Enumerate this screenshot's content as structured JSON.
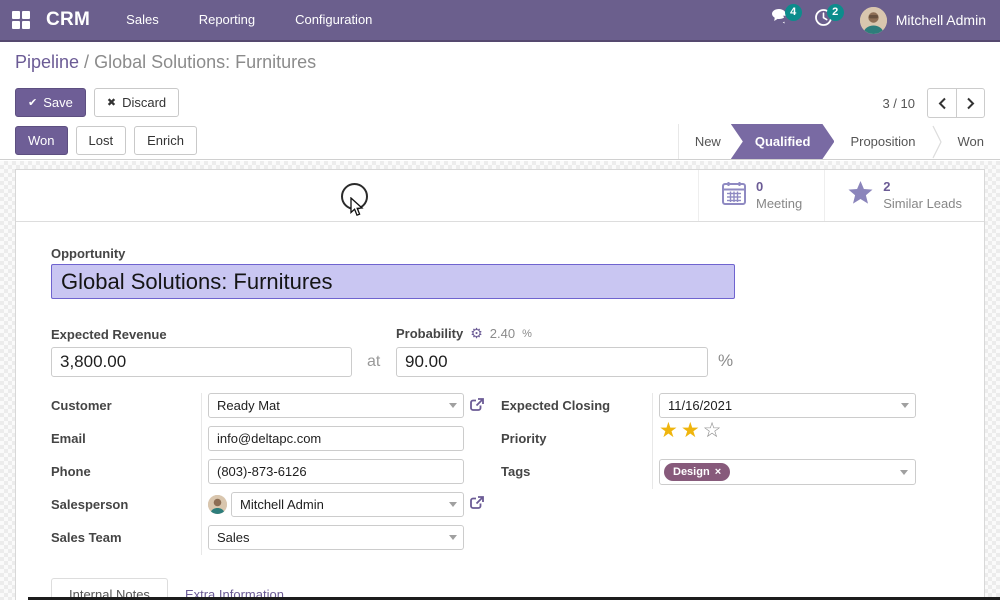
{
  "colors": {
    "nav_bg": "#6b5f8d",
    "accent_purple": "#6e5e96",
    "link_purple": "#6b5b95",
    "badge_teal": "#0d8c8c",
    "tag_bg": "#875a7b",
    "star_gold": "#efb50e",
    "stage_active_bg": "#796aa3",
    "title_selection_bg": "#c9c6f2",
    "title_selection_border": "#6f64cf"
  },
  "nav": {
    "app_name": "CRM",
    "menus": [
      {
        "label": "Sales"
      },
      {
        "label": "Reporting"
      },
      {
        "label": "Configuration"
      }
    ],
    "messages_badge": "4",
    "activities_badge": "2",
    "user_name": "Mitchell Admin"
  },
  "breadcrumb": {
    "parent": "Pipeline",
    "separator": " / ",
    "current": "Global Solutions: Furnitures"
  },
  "toolbar": {
    "save_icon": "✔",
    "save_label": "Save",
    "discard_icon": "✖",
    "discard_label": "Discard",
    "pager_text": "3 / 10"
  },
  "state_buttons": {
    "won": "Won",
    "lost": "Lost",
    "enrich": "Enrich"
  },
  "stages": [
    {
      "label": "New",
      "active": false
    },
    {
      "label": "Qualified",
      "active": true
    },
    {
      "label": "Proposition",
      "active": false
    },
    {
      "label": "Won",
      "active": false
    }
  ],
  "stat_buttons": {
    "meeting": {
      "value": "0",
      "label": "Meeting"
    },
    "similar_leads": {
      "value": "2",
      "label": "Similar Leads"
    }
  },
  "form": {
    "opportunity": {
      "label": "Opportunity",
      "value": "Global Solutions: Furnitures"
    },
    "expected_revenue": {
      "label": "Expected Revenue",
      "value": "3,800.00"
    },
    "at_separator": "at",
    "probability": {
      "label": "Probability",
      "gear_icon": "⚙",
      "auto_value": "2.40",
      "unit": "%",
      "value": "90.00"
    },
    "customer": {
      "label": "Customer",
      "value": "Ready Mat"
    },
    "email": {
      "label": "Email",
      "value": "info@deltapc.com"
    },
    "phone": {
      "label": "Phone",
      "value": "(803)-873-6126"
    },
    "salesperson": {
      "label": "Salesperson",
      "value": "Mitchell Admin"
    },
    "sales_team": {
      "label": "Sales Team",
      "value": "Sales"
    },
    "expected_closing": {
      "label": "Expected Closing",
      "value": "11/16/2021"
    },
    "priority": {
      "label": "Priority",
      "stars_filled": 2,
      "stars_total": 3
    },
    "tags": {
      "label": "Tags",
      "items": [
        {
          "name": "Design",
          "remove": "×"
        }
      ]
    }
  },
  "tabs": [
    {
      "label": "Internal Notes",
      "active": true
    },
    {
      "label": "Extra Information",
      "active": false
    }
  ]
}
